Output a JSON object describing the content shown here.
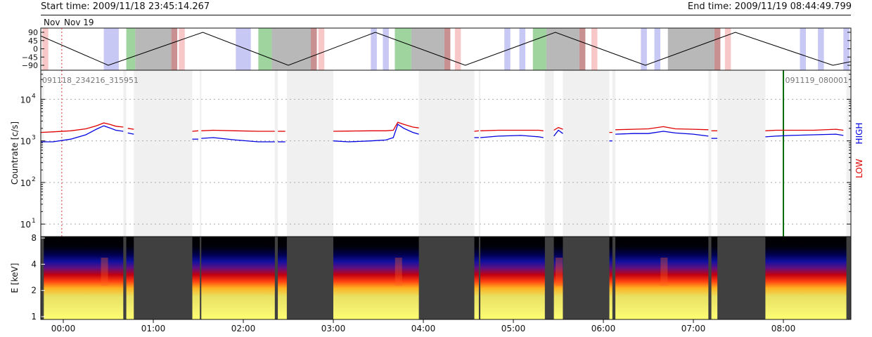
{
  "header": {
    "start_label": "Start time: 2009/11/18 23:45:14.267",
    "end_label": "End time: 2009/11/19 08:44:49.799"
  },
  "colors": {
    "low": "#e00000",
    "high": "#0000e0",
    "marker": "#0a6b0a",
    "data_gap": "#f0f0f0",
    "spectrogram_gap": "#404040",
    "blue_band": "#c8c8f4",
    "green_band": "#9fd49f",
    "grey_band": "#b8b8b8",
    "pink_band": "#f8c8c8",
    "maroon_band": "#c89090"
  },
  "chart_data": [
    {
      "type": "line",
      "panel": "attitude",
      "date_labels": [
        "Nov",
        "Nov 19"
      ],
      "ylim": [
        -90,
        90
      ],
      "yticks": [
        "90",
        "45",
        "0",
        "−45",
        "−90"
      ],
      "zigzag_points": [
        {
          "t": "23:45",
          "y": 70
        },
        {
          "t": "00:30",
          "y": -90
        },
        {
          "t": "01:33",
          "y": 90
        },
        {
          "t": "02:30",
          "y": -90
        },
        {
          "t": "03:28",
          "y": 90
        },
        {
          "t": "04:28",
          "y": -90
        },
        {
          "t": "05:28",
          "y": 90
        },
        {
          "t": "06:28",
          "y": -90
        },
        {
          "t": "07:28",
          "y": 90
        },
        {
          "t": "08:33",
          "y": -90
        },
        {
          "t": "08:45",
          "y": -70
        }
      ],
      "bands": [
        {
          "start": "23:46",
          "end": "23:50",
          "kind": "pink_band"
        },
        {
          "start": "00:27",
          "end": "00:37",
          "kind": "blue_band"
        },
        {
          "start": "00:42",
          "end": "00:48",
          "kind": "green_band"
        },
        {
          "start": "00:48",
          "end": "01:12",
          "kind": "grey_band"
        },
        {
          "start": "01:12",
          "end": "01:16",
          "kind": "maroon_band"
        },
        {
          "start": "01:17",
          "end": "01:21",
          "kind": "pink_band"
        },
        {
          "start": "01:55",
          "end": "02:05",
          "kind": "blue_band"
        },
        {
          "start": "02:10",
          "end": "02:19",
          "kind": "green_band"
        },
        {
          "start": "02:19",
          "end": "02:45",
          "kind": "grey_band"
        },
        {
          "start": "02:45",
          "end": "02:49",
          "kind": "maroon_band"
        },
        {
          "start": "02:50",
          "end": "02:54",
          "kind": "pink_band"
        },
        {
          "start": "03:25",
          "end": "03:29",
          "kind": "blue_band"
        },
        {
          "start": "03:33",
          "end": "03:37",
          "kind": "blue_band"
        },
        {
          "start": "03:41",
          "end": "03:52",
          "kind": "green_band"
        },
        {
          "start": "03:52",
          "end": "04:14",
          "kind": "grey_band"
        },
        {
          "start": "04:14",
          "end": "04:18",
          "kind": "maroon_band"
        },
        {
          "start": "04:21",
          "end": "04:25",
          "kind": "pink_band"
        },
        {
          "start": "04:54",
          "end": "04:58",
          "kind": "blue_band"
        },
        {
          "start": "05:04",
          "end": "05:08",
          "kind": "blue_band"
        },
        {
          "start": "05:13",
          "end": "05:22",
          "kind": "green_band"
        },
        {
          "start": "05:22",
          "end": "05:44",
          "kind": "grey_band"
        },
        {
          "start": "05:44",
          "end": "05:48",
          "kind": "maroon_band"
        },
        {
          "start": "05:52",
          "end": "05:56",
          "kind": "pink_band"
        },
        {
          "start": "06:25",
          "end": "06:29",
          "kind": "blue_band"
        },
        {
          "start": "06:34",
          "end": "06:38",
          "kind": "blue_band"
        },
        {
          "start": "06:43",
          "end": "07:14",
          "kind": "grey_band"
        },
        {
          "start": "07:14",
          "end": "07:18",
          "kind": "maroon_band"
        },
        {
          "start": "07:21",
          "end": "07:25",
          "kind": "pink_band"
        },
        {
          "start": "08:11",
          "end": "08:15",
          "kind": "blue_band"
        },
        {
          "start": "08:23",
          "end": "08:27",
          "kind": "blue_band"
        },
        {
          "start": "08:40",
          "end": "08:44",
          "kind": "blue_band"
        }
      ]
    },
    {
      "type": "line",
      "panel": "countrate",
      "ylabel": "Countrate [c/s]",
      "yscale": "log",
      "ylim": [
        5,
        50000
      ],
      "yticks": [
        10,
        100,
        1000,
        10000
      ],
      "ytick_labels": [
        [
          "10",
          "1"
        ],
        [
          "10",
          "2"
        ],
        [
          "10",
          "3"
        ],
        [
          "10",
          "4"
        ]
      ],
      "grid": "dotted",
      "right_labels": {
        "low": "LOW",
        "high": "HIGH"
      },
      "annotations": [
        {
          "text": "091118_234216_315951",
          "position": "top-left"
        },
        {
          "text": "091119_080001",
          "position": "top-right"
        }
      ],
      "vertical_marker_time": "08:00",
      "reference_line_time": "23:59",
      "series": [
        {
          "name": "LOW",
          "color": "#e00000",
          "segments": [
            [
              [
                "23:45",
                1600
              ],
              [
                "23:53",
                1650
              ],
              [
                "00:05",
                1750
              ],
              [
                "00:15",
                1950
              ],
              [
                "00:22",
                2300
              ],
              [
                "00:27",
                2700
              ],
              [
                "00:31",
                2500
              ],
              [
                "00:35",
                2250
              ],
              [
                "00:40",
                2150
              ]
            ],
            [
              [
                "00:43",
                2000
              ],
              [
                "00:47",
                1900
              ]
            ],
            [
              [
                "01:26",
                1700
              ],
              [
                "01:30",
                1750
              ]
            ],
            [
              [
                "01:32",
                1750
              ],
              [
                "01:40",
                1800
              ],
              [
                "01:55",
                1750
              ],
              [
                "02:10",
                1700
              ],
              [
                "02:21",
                1700
              ]
            ],
            [
              [
                "02:23",
                1700
              ],
              [
                "02:28",
                1700
              ]
            ],
            [
              [
                "03:00",
                1700
              ],
              [
                "03:10",
                1720
              ],
              [
                "03:25",
                1750
              ],
              [
                "03:35",
                1750
              ],
              [
                "03:40",
                1800
              ],
              [
                "03:43",
                2800
              ],
              [
                "03:47",
                2500
              ],
              [
                "03:53",
                2150
              ],
              [
                "03:57",
                2050
              ]
            ],
            [
              [
                "04:34",
                1700
              ],
              [
                "04:37",
                1750
              ]
            ],
            [
              [
                "04:38",
                1750
              ],
              [
                "04:50",
                1800
              ],
              [
                "05:05",
                1800
              ],
              [
                "05:17",
                1800
              ],
              [
                "05:20",
                1750
              ]
            ],
            [
              [
                "05:27",
                1800
              ],
              [
                "05:30",
                2100
              ],
              [
                "05:33",
                1900
              ]
            ],
            [
              [
                "06:04",
                1600
              ],
              [
                "06:06",
                1600
              ]
            ],
            [
              [
                "06:08",
                1850
              ],
              [
                "06:20",
                1900
              ],
              [
                "06:30",
                1950
              ],
              [
                "06:40",
                2200
              ],
              [
                "06:48",
                1950
              ],
              [
                "07:00",
                1900
              ],
              [
                "07:10",
                1850
              ]
            ],
            [
              [
                "07:12",
                1750
              ],
              [
                "07:16",
                1750
              ]
            ],
            [
              [
                "07:48",
                1750
              ],
              [
                "07:55",
                1800
              ],
              [
                "08:05",
                1800
              ],
              [
                "08:20",
                1800
              ],
              [
                "08:35",
                1900
              ],
              [
                "08:40",
                1800
              ]
            ]
          ]
        },
        {
          "name": "HIGH",
          "color": "#0000e0",
          "segments": [
            [
              [
                "23:45",
                950
              ],
              [
                "23:53",
                950
              ],
              [
                "00:05",
                1100
              ],
              [
                "00:15",
                1400
              ],
              [
                "00:22",
                1900
              ],
              [
                "00:27",
                2300
              ],
              [
                "00:31",
                2050
              ],
              [
                "00:35",
                1800
              ],
              [
                "00:40",
                1700
              ]
            ],
            [
              [
                "00:43",
                1550
              ],
              [
                "00:47",
                1450
              ]
            ],
            [
              [
                "01:26",
                1100
              ],
              [
                "01:30",
                1100
              ]
            ],
            [
              [
                "01:32",
                1150
              ],
              [
                "01:40",
                1200
              ],
              [
                "01:55",
                1050
              ],
              [
                "02:10",
                950
              ],
              [
                "02:21",
                950
              ]
            ],
            [
              [
                "02:23",
                950
              ],
              [
                "02:28",
                950
              ]
            ],
            [
              [
                "03:00",
                1000
              ],
              [
                "03:10",
                950
              ],
              [
                "03:25",
                1000
              ],
              [
                "03:35",
                1050
              ],
              [
                "03:40",
                1200
              ],
              [
                "03:43",
                2500
              ],
              [
                "03:47",
                2000
              ],
              [
                "03:53",
                1600
              ],
              [
                "03:57",
                1450
              ]
            ],
            [
              [
                "04:34",
                1200
              ],
              [
                "04:37",
                1200
              ]
            ],
            [
              [
                "04:38",
                1200
              ],
              [
                "04:50",
                1300
              ],
              [
                "05:05",
                1350
              ],
              [
                "05:17",
                1250
              ],
              [
                "05:20",
                1200
              ]
            ],
            [
              [
                "05:27",
                1300
              ],
              [
                "05:30",
                1800
              ],
              [
                "05:33",
                1500
              ]
            ],
            [
              [
                "06:04",
                1000
              ],
              [
                "06:06",
                1000
              ]
            ],
            [
              [
                "06:08",
                1450
              ],
              [
                "06:20",
                1500
              ],
              [
                "06:30",
                1500
              ],
              [
                "06:40",
                1700
              ],
              [
                "06:48",
                1550
              ],
              [
                "07:00",
                1450
              ],
              [
                "07:10",
                1300
              ]
            ],
            [
              [
                "07:12",
                1150
              ],
              [
                "07:16",
                1150
              ]
            ],
            [
              [
                "07:48",
                1250
              ],
              [
                "07:55",
                1300
              ],
              [
                "08:05",
                1350
              ],
              [
                "08:20",
                1400
              ],
              [
                "08:35",
                1450
              ],
              [
                "08:40",
                1350
              ]
            ]
          ]
        }
      ],
      "gaps": [
        {
          "start": "23:45",
          "end": "23:47"
        },
        {
          "start": "00:40",
          "end": "00:42"
        },
        {
          "start": "00:47",
          "end": "01:26"
        },
        {
          "start": "01:31",
          "end": "01:32"
        },
        {
          "start": "02:21",
          "end": "02:23"
        },
        {
          "start": "02:29",
          "end": "03:00"
        },
        {
          "start": "03:57",
          "end": "04:34"
        },
        {
          "start": "04:37",
          "end": "04:38"
        },
        {
          "start": "05:21",
          "end": "05:27"
        },
        {
          "start": "05:33",
          "end": "06:04"
        },
        {
          "start": "06:06",
          "end": "06:08"
        },
        {
          "start": "07:10",
          "end": "07:12"
        },
        {
          "start": "07:16",
          "end": "07:48"
        },
        {
          "start": "08:42",
          "end": "08:45"
        }
      ]
    },
    {
      "type": "heatmap",
      "panel": "spectrogram",
      "ylabel": "E [keV]",
      "yscale": "log",
      "ylim": [
        1,
        8
      ],
      "yticks": [
        "1",
        "2",
        "4",
        "8"
      ],
      "xlim": [
        "23:45",
        "08:45"
      ],
      "xticks": [
        "00:00",
        "01:00",
        "02:00",
        "03:00",
        "04:00",
        "05:00",
        "06:00",
        "07:00",
        "08:00"
      ],
      "colorscale": [
        "#000000",
        "#000060",
        "#2020c0",
        "#8000a0",
        "#c00000",
        "#ff2000",
        "#ff8000",
        "#ffd000",
        "#ffff80"
      ],
      "bright_peaks_at": [
        "00:27",
        "03:43",
        "05:30",
        "06:40"
      ],
      "gaps": [
        {
          "start": "23:45",
          "end": "23:47"
        },
        {
          "start": "00:40",
          "end": "00:42"
        },
        {
          "start": "00:47",
          "end": "01:26"
        },
        {
          "start": "01:31",
          "end": "01:32"
        },
        {
          "start": "02:21",
          "end": "02:23"
        },
        {
          "start": "02:29",
          "end": "03:00"
        },
        {
          "start": "03:57",
          "end": "04:34"
        },
        {
          "start": "04:37",
          "end": "04:38"
        },
        {
          "start": "05:21",
          "end": "05:27"
        },
        {
          "start": "05:33",
          "end": "06:04"
        },
        {
          "start": "06:06",
          "end": "06:08"
        },
        {
          "start": "07:10",
          "end": "07:12"
        },
        {
          "start": "07:16",
          "end": "07:48"
        },
        {
          "start": "08:42",
          "end": "08:45"
        }
      ]
    }
  ]
}
